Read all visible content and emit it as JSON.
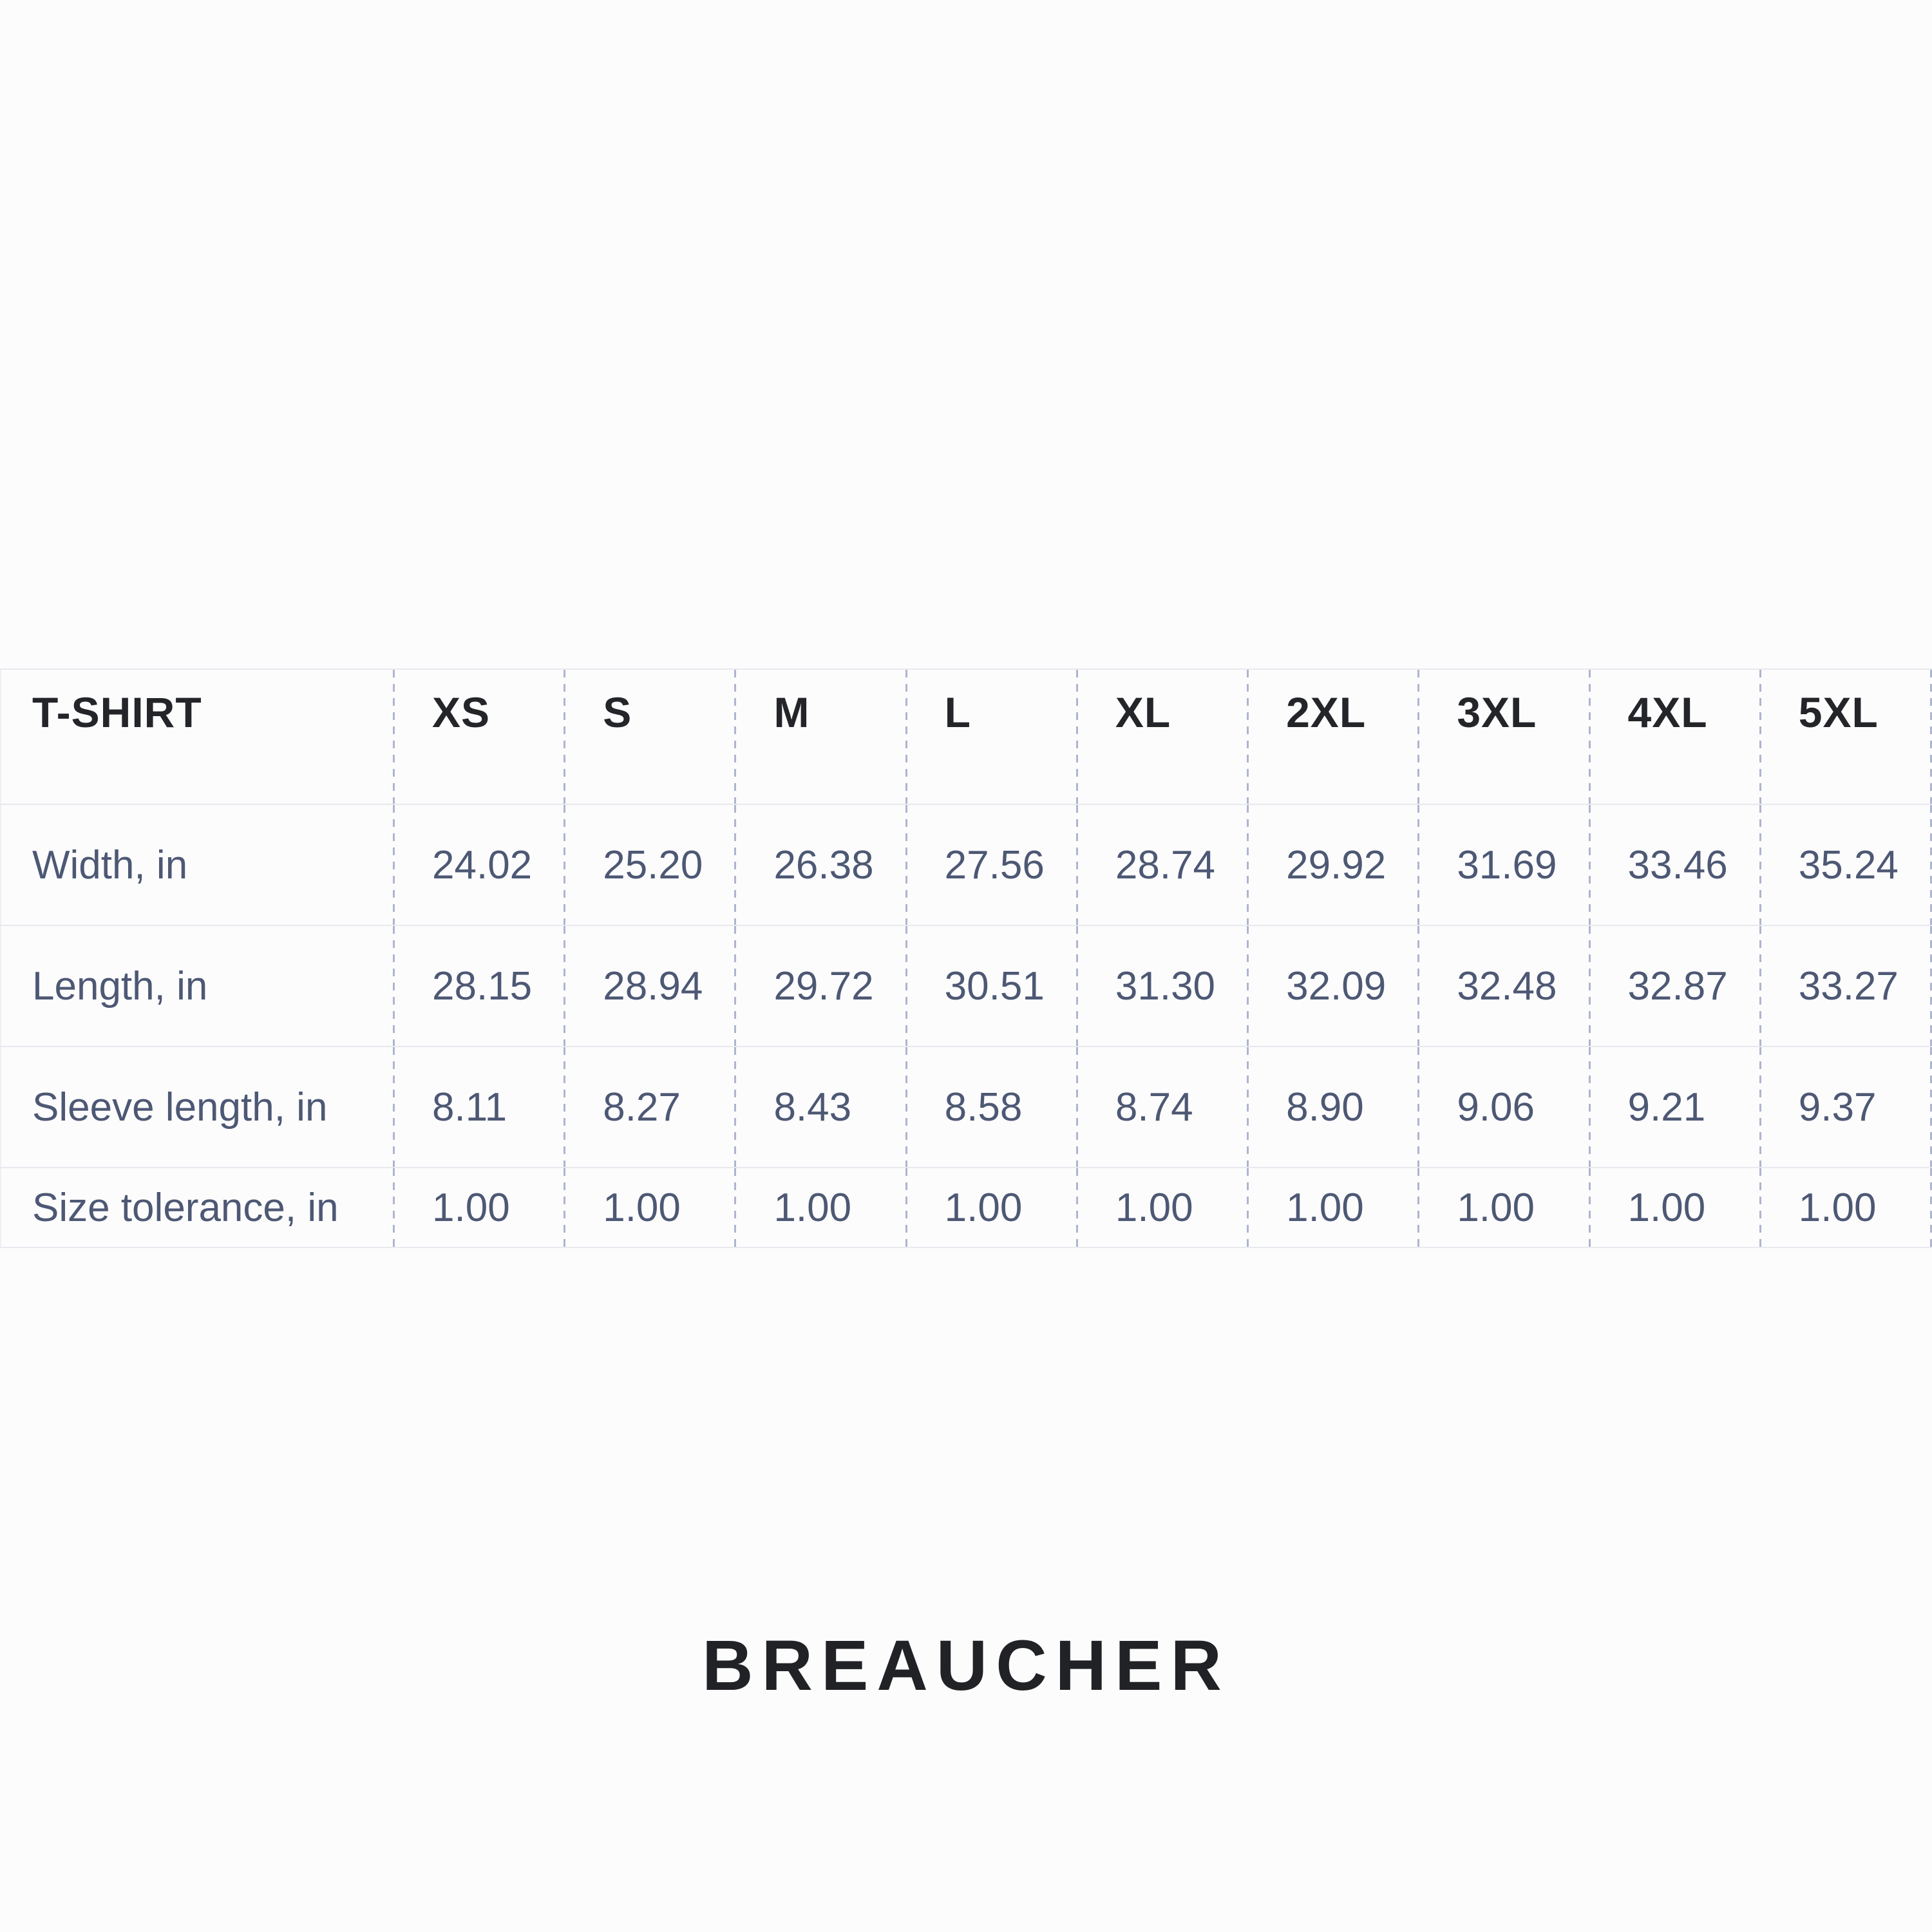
{
  "colors": {
    "background": "#fcfcfd",
    "header_text": "#232529",
    "data_text": "#4d5874",
    "dashed_separator": "#adb5cf",
    "solid_separator": "#e8e9ee",
    "brand_text": "#212226"
  },
  "table": {
    "header": {
      "label": "T-SHIRT",
      "sizes": [
        "XS",
        "S",
        "M",
        "L",
        "XL",
        "2XL",
        "3XL",
        "4XL",
        "5XL"
      ]
    },
    "rows": [
      {
        "label": "Width, in",
        "values": [
          "24.02",
          "25.20",
          "26.38",
          "27.56",
          "28.74",
          "29.92",
          "31.69",
          "33.46",
          "35.24"
        ]
      },
      {
        "label": "Length, in",
        "values": [
          "28.15",
          "28.94",
          "29.72",
          "30.51",
          "31.30",
          "32.09",
          "32.48",
          "32.87",
          "33.27"
        ]
      },
      {
        "label": "Sleeve length, in",
        "values": [
          "8.11",
          "8.27",
          "8.43",
          "8.58",
          "8.74",
          "8.90",
          "9.06",
          "9.21",
          "9.37"
        ]
      },
      {
        "label": "Size tolerance, in",
        "values": [
          "1.00",
          "1.00",
          "1.00",
          "1.00",
          "1.00",
          "1.00",
          "1.00",
          "1.00",
          "1.00"
        ]
      }
    ]
  },
  "brand": {
    "name": "BREAUCHER"
  },
  "chart_data": {
    "type": "table",
    "title": "T-SHIRT",
    "columns": [
      "T-SHIRT",
      "XS",
      "S",
      "M",
      "L",
      "XL",
      "2XL",
      "3XL",
      "4XL",
      "5XL"
    ],
    "rows": [
      [
        "Width, in",
        24.02,
        25.2,
        26.38,
        27.56,
        28.74,
        29.92,
        31.69,
        33.46,
        35.24
      ],
      [
        "Length, in",
        28.15,
        28.94,
        29.72,
        30.51,
        31.3,
        32.09,
        32.48,
        32.87,
        33.27
      ],
      [
        "Sleeve length, in",
        8.11,
        8.27,
        8.43,
        8.58,
        8.74,
        8.9,
        9.06,
        9.21,
        9.37
      ],
      [
        "Size tolerance, in",
        1.0,
        1.0,
        1.0,
        1.0,
        1.0,
        1.0,
        1.0,
        1.0,
        1.0
      ]
    ],
    "units": "in",
    "layout": {
      "grid": "dashed vertical column separators, solid light horizontal row separators",
      "legend": "none"
    }
  }
}
